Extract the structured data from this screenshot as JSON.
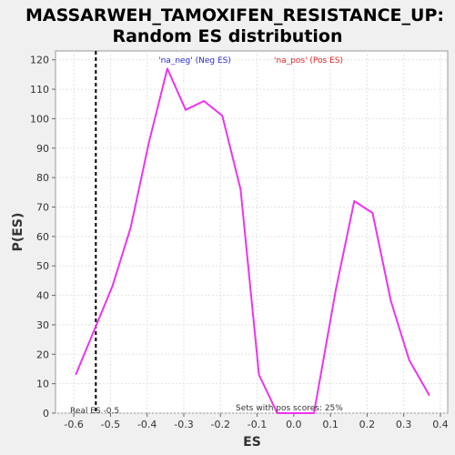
{
  "chart_data": {
    "type": "line",
    "title_line1": "MASSARWEH_TAMOXIFEN_RESISTANCE_UP:",
    "title_line2": "Random ES distribution",
    "xlabel": "ES",
    "ylabel": "P(ES)",
    "xlim": [
      -0.65,
      0.42
    ],
    "ylim": [
      0,
      123
    ],
    "x_ticks": [
      -0.6,
      -0.5,
      -0.4,
      -0.3,
      -0.2,
      -0.1,
      0.0,
      0.1,
      0.2,
      0.3,
      0.4
    ],
    "x_tick_labels": [
      "-0.6",
      "-0.5",
      "-0.4",
      "-0.3",
      "-0.2",
      "-0.1",
      "0.0",
      "0.1",
      "0.2",
      "0.3",
      "0.4"
    ],
    "y_ticks": [
      0,
      10,
      20,
      30,
      40,
      50,
      60,
      70,
      80,
      90,
      100,
      110,
      120
    ],
    "y_tick_labels": [
      "0",
      "10",
      "20",
      "30",
      "40",
      "50",
      "60",
      "70",
      "80",
      "90",
      "100",
      "110",
      "120"
    ],
    "grid": true,
    "series": [
      {
        "name": "Random ES distribution",
        "color": "#ee33ee",
        "x": [
          -0.595,
          -0.545,
          -0.495,
          -0.445,
          -0.395,
          -0.345,
          -0.295,
          -0.245,
          -0.195,
          -0.145,
          -0.095,
          -0.045,
          0.005,
          0.055,
          0.115,
          0.165,
          0.215,
          0.265,
          0.315,
          0.37
        ],
        "y": [
          13,
          28,
          43,
          63,
          92,
          117,
          103,
          106,
          101,
          76,
          13,
          0,
          0,
          0,
          42,
          72,
          68,
          38,
          18,
          6
        ]
      }
    ],
    "real_es": -0.54,
    "real_es_color": "#000000",
    "legend_neg": "'na_neg' (Neg ES)",
    "legend_pos": "'na_pos' (Pos ES)",
    "legend_neg_color": "#2b2bd6",
    "legend_pos_color": "#e82020",
    "annotation_real_es": "Real ES -0.5",
    "annotation_pos_scores": "Sets with pos scores: 25%"
  }
}
